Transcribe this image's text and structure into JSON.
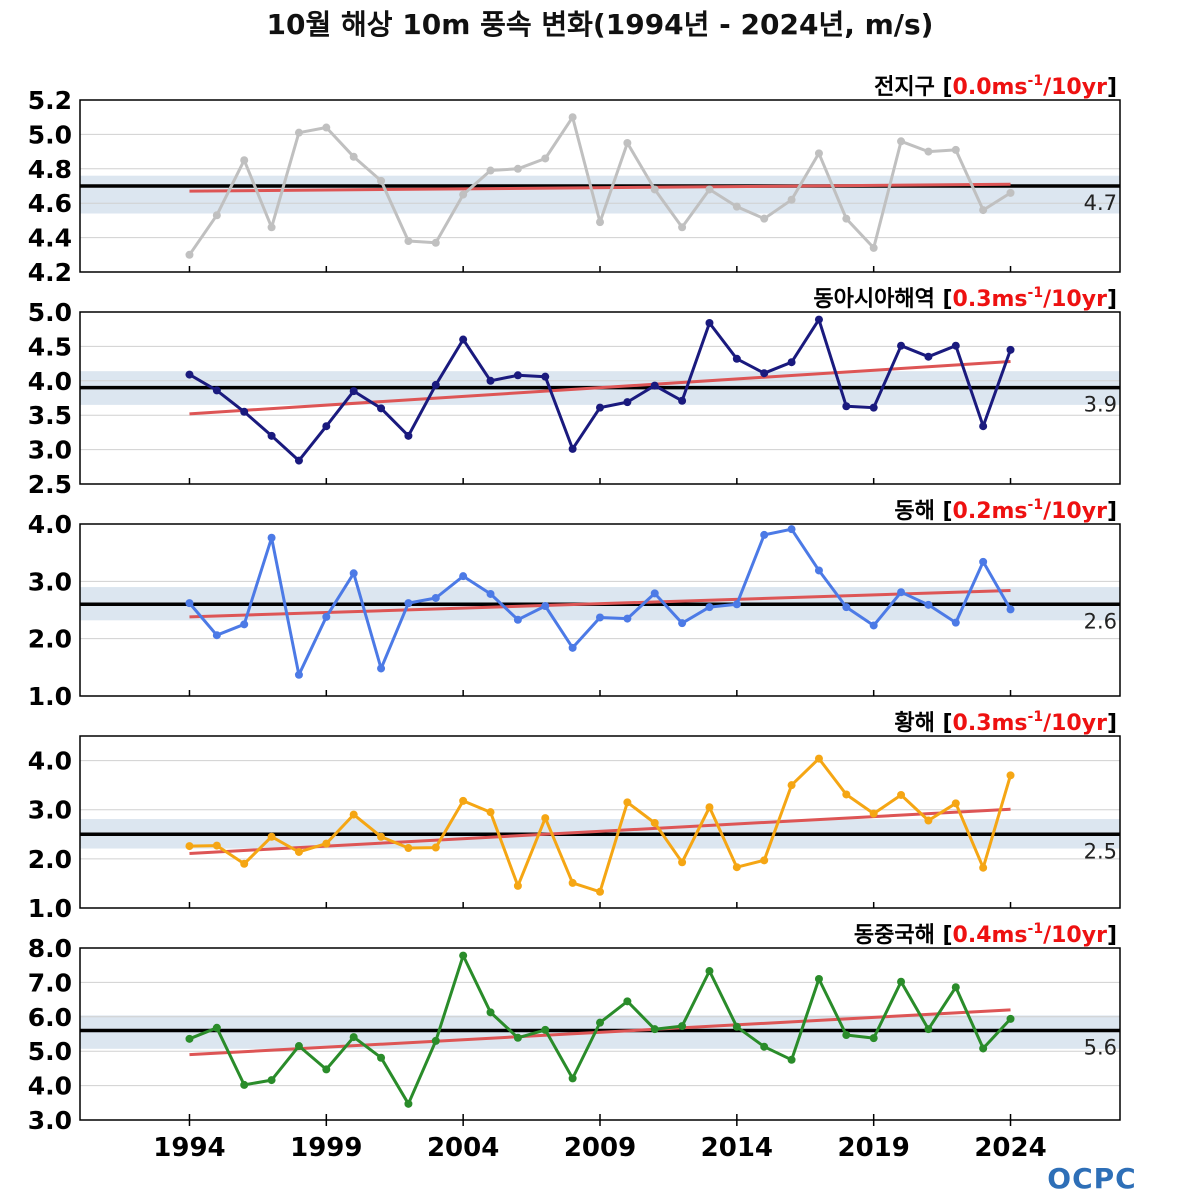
{
  "title": "10월 해상 10m 풍속 변화(1994년 - 2024년, m/s)",
  "logo": "OCPC",
  "colors": {
    "mean_line": "#000000",
    "band": "#dce6f0",
    "trend_line": "#dd5555",
    "trend_text": "#ee1111",
    "grid": "#d0d0d0"
  },
  "chart_data": [
    {
      "type": "line",
      "region": "전지구",
      "trend": "0.0ms⁻¹/10yr",
      "trend_parts": [
        "0.0ms",
        "-1",
        "/10yr"
      ],
      "color": "#c0c0c0",
      "ylim": [
        4.2,
        5.2
      ],
      "yticks": [
        "4.2",
        "4.4",
        "4.6",
        "4.8",
        "5.0",
        "5.2"
      ],
      "mean": 4.7,
      "mean_label": "4.7",
      "band": [
        4.54,
        4.76
      ],
      "trend_line": [
        4.67,
        4.71
      ],
      "x": [
        1994,
        1995,
        1996,
        1997,
        1998,
        1999,
        2000,
        2001,
        2002,
        2003,
        2004,
        2005,
        2006,
        2007,
        2008,
        2009,
        2010,
        2011,
        2012,
        2013,
        2014,
        2015,
        2016,
        2017,
        2018,
        2019,
        2020,
        2021,
        2022,
        2023,
        2024
      ],
      "values": [
        4.3,
        4.53,
        4.85,
        4.46,
        5.01,
        5.04,
        4.87,
        4.73,
        4.38,
        4.37,
        4.65,
        4.79,
        4.8,
        4.86,
        5.1,
        4.49,
        4.95,
        4.68,
        4.46,
        4.68,
        4.58,
        4.51,
        4.62,
        4.89,
        4.51,
        4.34,
        4.96,
        4.9,
        4.91,
        4.56,
        4.66
      ]
    },
    {
      "type": "line",
      "region": "동아시아해역",
      "trend": "0.3ms⁻¹/10yr",
      "trend_parts": [
        "0.3ms",
        "-1",
        "/10yr"
      ],
      "color": "#1a1a7e",
      "ylim": [
        2.5,
        5.0
      ],
      "yticks": [
        "2.5",
        "3.0",
        "3.5",
        "4.0",
        "4.5",
        "5.0"
      ],
      "mean": 3.9,
      "mean_label": "3.9",
      "band": [
        3.65,
        4.14
      ],
      "trend_line": [
        3.52,
        4.28
      ],
      "x": [
        1994,
        1995,
        1996,
        1997,
        1998,
        1999,
        2000,
        2001,
        2002,
        2003,
        2004,
        2005,
        2006,
        2007,
        2008,
        2009,
        2010,
        2011,
        2012,
        2013,
        2014,
        2015,
        2016,
        2017,
        2018,
        2019,
        2020,
        2021,
        2022,
        2023,
        2024
      ],
      "values": [
        4.09,
        3.86,
        3.55,
        3.2,
        2.84,
        3.34,
        3.85,
        3.6,
        3.2,
        3.94,
        4.6,
        4.0,
        4.08,
        4.06,
        3.01,
        3.61,
        3.69,
        3.93,
        3.71,
        4.84,
        4.32,
        4.11,
        4.27,
        4.89,
        3.63,
        3.61,
        4.51,
        4.35,
        4.51,
        3.34,
        4.45
      ]
    },
    {
      "type": "line",
      "region": "동해",
      "trend": "0.2ms⁻¹/10yr",
      "trend_parts": [
        "0.2ms",
        "-1",
        "/10yr"
      ],
      "color": "#4c7ae6",
      "ylim": [
        1.0,
        4.0
      ],
      "yticks": [
        "1.0",
        "2.0",
        "3.0",
        "4.0"
      ],
      "mean": 2.6,
      "mean_label": "2.6",
      "band": [
        2.32,
        2.9
      ],
      "trend_line": [
        2.38,
        2.84
      ],
      "x": [
        1994,
        1995,
        1996,
        1997,
        1998,
        1999,
        2000,
        2001,
        2002,
        2003,
        2004,
        2005,
        2006,
        2007,
        2008,
        2009,
        2010,
        2011,
        2012,
        2013,
        2014,
        2015,
        2016,
        2017,
        2018,
        2019,
        2020,
        2021,
        2022,
        2023,
        2024
      ],
      "values": [
        2.62,
        2.06,
        2.25,
        3.76,
        1.37,
        2.38,
        3.14,
        1.48,
        2.62,
        2.71,
        3.09,
        2.78,
        2.33,
        2.57,
        1.84,
        2.37,
        2.35,
        2.79,
        2.27,
        2.55,
        2.6,
        3.81,
        3.91,
        3.19,
        2.55,
        2.23,
        2.81,
        2.59,
        2.28,
        3.34,
        2.51
      ]
    },
    {
      "type": "line",
      "region": "황해",
      "trend": "0.3ms⁻¹/10yr",
      "trend_parts": [
        "0.3ms",
        "-1",
        "/10yr"
      ],
      "color": "#f5a614",
      "ylim": [
        1.0,
        4.5
      ],
      "yticks": [
        "1.0",
        "2.0",
        "3.0",
        "4.0"
      ],
      "mean": 2.5,
      "mean_label": "2.5",
      "band": [
        2.21,
        2.81
      ],
      "trend_line": [
        2.11,
        3.01
      ],
      "x": [
        1994,
        1995,
        1996,
        1997,
        1998,
        1999,
        2000,
        2001,
        2002,
        2003,
        2004,
        2005,
        2006,
        2007,
        2008,
        2009,
        2010,
        2011,
        2012,
        2013,
        2014,
        2015,
        2016,
        2017,
        2018,
        2019,
        2020,
        2021,
        2022,
        2023,
        2024
      ],
      "values": [
        2.26,
        2.27,
        1.9,
        2.45,
        2.14,
        2.31,
        2.9,
        2.45,
        2.22,
        2.23,
        3.18,
        2.95,
        1.45,
        2.83,
        1.51,
        1.33,
        3.15,
        2.73,
        1.93,
        3.05,
        1.83,
        1.97,
        3.5,
        4.04,
        3.31,
        2.92,
        3.3,
        2.78,
        3.13,
        1.82,
        3.7
      ]
    },
    {
      "type": "line",
      "region": "동중국해",
      "trend": "0.4ms⁻¹/10yr",
      "trend_parts": [
        "0.4ms",
        "-1",
        "/10yr"
      ],
      "color": "#2a8c2a",
      "ylim": [
        3.0,
        8.0
      ],
      "yticks": [
        "3.0",
        "4.0",
        "5.0",
        "6.0",
        "7.0",
        "8.0"
      ],
      "mean": 5.6,
      "mean_label": "5.6",
      "band": [
        5.07,
        6.04
      ],
      "trend_line": [
        4.9,
        6.2
      ],
      "x": [
        1994,
        1995,
        1996,
        1997,
        1998,
        1999,
        2000,
        2001,
        2002,
        2003,
        2004,
        2005,
        2006,
        2007,
        2008,
        2009,
        2010,
        2011,
        2012,
        2013,
        2014,
        2015,
        2016,
        2017,
        2018,
        2019,
        2020,
        2021,
        2022,
        2023,
        2024
      ],
      "values": [
        5.36,
        5.68,
        4.02,
        4.16,
        5.15,
        4.47,
        5.41,
        4.81,
        3.47,
        5.3,
        7.78,
        6.13,
        5.39,
        5.62,
        4.21,
        5.83,
        6.45,
        5.64,
        5.73,
        7.33,
        5.71,
        5.13,
        4.75,
        7.1,
        5.47,
        5.38,
        7.02,
        5.64,
        6.86,
        5.08,
        5.94
      ]
    }
  ],
  "xaxis": {
    "ticks": [
      "1994",
      "1999",
      "2004",
      "2009",
      "2014",
      "2019",
      "2024"
    ],
    "tick_values": [
      1994,
      1999,
      2004,
      2009,
      2014,
      2019,
      2024
    ],
    "range": [
      1990,
      2028
    ]
  }
}
